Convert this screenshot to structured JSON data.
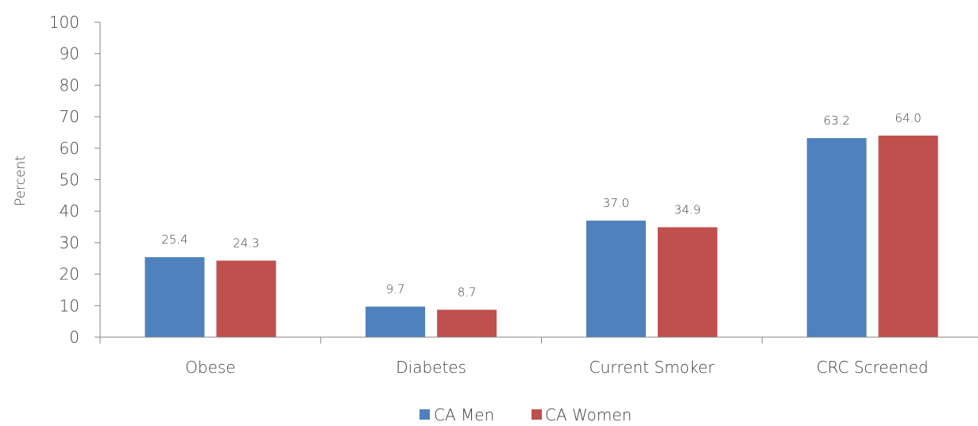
{
  "chart_data": {
    "type": "bar",
    "categories": [
      "Obese",
      "Diabetes",
      "Current Smoker",
      "CRC Screened"
    ],
    "series": [
      {
        "name": "CA Men",
        "values": [
          25.4,
          9.7,
          37.0,
          63.2
        ],
        "labels": [
          "25.4",
          "9.7",
          "37.0",
          "63.2"
        ],
        "color": "#4F81BD"
      },
      {
        "name": "CA Women",
        "values": [
          24.3,
          8.7,
          34.9,
          64.0
        ],
        "labels": [
          "24.3",
          "8.7",
          "34.9",
          "64.0"
        ],
        "color": "#C0504D"
      }
    ],
    "ylabel": "Percent",
    "ylim": [
      0,
      100
    ],
    "yticks": [
      0,
      10,
      20,
      30,
      40,
      50,
      60,
      70,
      80,
      90,
      100
    ],
    "ytick_labels": [
      "0",
      "10",
      "20",
      "30",
      "40",
      "50",
      "60",
      "70",
      "80",
      "90",
      "100"
    ],
    "grid": false,
    "legend_position": "bottom"
  }
}
